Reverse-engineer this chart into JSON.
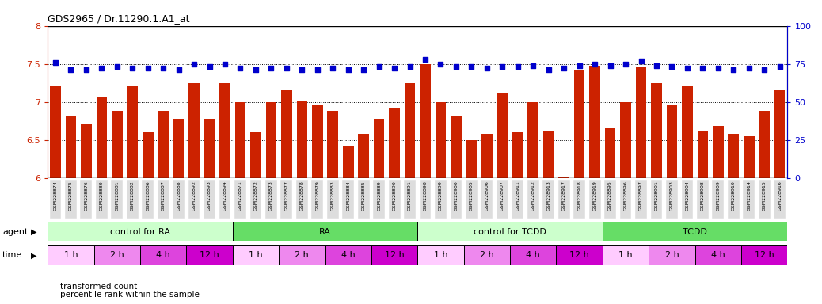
{
  "title": "GDS2965 / Dr.11290.1.A1_at",
  "bar_color": "#cc2200",
  "dot_color": "#0000cc",
  "samples": [
    "GSM228874",
    "GSM228875",
    "GSM228876",
    "GSM228880",
    "GSM228881",
    "GSM228882",
    "GSM228886",
    "GSM228887",
    "GSM228888",
    "GSM228892",
    "GSM228893",
    "GSM228894",
    "GSM228871",
    "GSM228872",
    "GSM228873",
    "GSM228877",
    "GSM228878",
    "GSM228879",
    "GSM228883",
    "GSM228884",
    "GSM228885",
    "GSM228889",
    "GSM228890",
    "GSM228891",
    "GSM228898",
    "GSM228899",
    "GSM228900",
    "GSM228905",
    "GSM228906",
    "GSM228907",
    "GSM228911",
    "GSM228912",
    "GSM228913",
    "GSM228917",
    "GSM228918",
    "GSM228919",
    "GSM228895",
    "GSM228896",
    "GSM228897",
    "GSM228901",
    "GSM228903",
    "GSM228904",
    "GSM228908",
    "GSM228909",
    "GSM228910",
    "GSM228914",
    "GSM228915",
    "GSM228916"
  ],
  "bar_values": [
    7.2,
    6.82,
    6.72,
    7.07,
    6.88,
    7.2,
    6.6,
    6.88,
    6.78,
    7.25,
    6.78,
    7.25,
    7.0,
    6.6,
    7.0,
    7.15,
    7.02,
    6.97,
    6.88,
    6.42,
    6.58,
    6.78,
    6.92,
    7.25,
    7.5,
    7.0,
    6.82,
    6.5,
    6.58,
    7.12,
    6.6,
    7.0,
    6.62,
    6.02,
    7.42,
    7.48,
    6.65,
    7.0,
    7.45,
    7.25,
    6.95,
    7.22,
    6.62,
    6.68,
    6.58,
    6.55,
    6.88,
    7.15
  ],
  "dot_values": [
    76,
    71,
    71,
    72,
    73,
    72,
    72,
    72,
    71,
    75,
    73,
    75,
    72,
    71,
    72,
    72,
    71,
    71,
    72,
    71,
    71,
    73,
    72,
    73,
    78,
    75,
    73,
    73,
    72,
    73,
    73,
    74,
    71,
    72,
    74,
    75,
    74,
    75,
    77,
    74,
    73,
    72,
    72,
    72,
    71,
    72,
    71,
    73
  ],
  "ylim_left": [
    6.0,
    8.0
  ],
  "ylim_right": [
    0,
    100
  ],
  "yticks_left": [
    6.0,
    6.5,
    7.0,
    7.5,
    8.0
  ],
  "yticks_right": [
    0,
    25,
    50,
    75,
    100
  ],
  "agent_groups": [
    {
      "label": "control for RA",
      "start": 0,
      "end": 12,
      "color": "#ccffcc"
    },
    {
      "label": "RA",
      "start": 12,
      "end": 24,
      "color": "#66dd66"
    },
    {
      "label": "control for TCDD",
      "start": 24,
      "end": 36,
      "color": "#ccffcc"
    },
    {
      "label": "TCDD",
      "start": 36,
      "end": 48,
      "color": "#66dd66"
    }
  ],
  "time_groups": [
    {
      "label": "1 h",
      "start": 0,
      "end": 3,
      "color": "#ffccff"
    },
    {
      "label": "2 h",
      "start": 3,
      "end": 6,
      "color": "#ee88ee"
    },
    {
      "label": "4 h",
      "start": 6,
      "end": 9,
      "color": "#dd44dd"
    },
    {
      "label": "12 h",
      "start": 9,
      "end": 12,
      "color": "#cc00cc"
    },
    {
      "label": "1 h",
      "start": 12,
      "end": 15,
      "color": "#ffccff"
    },
    {
      "label": "2 h",
      "start": 15,
      "end": 18,
      "color": "#ee88ee"
    },
    {
      "label": "4 h",
      "start": 18,
      "end": 21,
      "color": "#dd44dd"
    },
    {
      "label": "12 h",
      "start": 21,
      "end": 24,
      "color": "#cc00cc"
    },
    {
      "label": "1 h",
      "start": 24,
      "end": 27,
      "color": "#ffccff"
    },
    {
      "label": "2 h",
      "start": 27,
      "end": 30,
      "color": "#ee88ee"
    },
    {
      "label": "4 h",
      "start": 30,
      "end": 33,
      "color": "#dd44dd"
    },
    {
      "label": "12 h",
      "start": 33,
      "end": 36,
      "color": "#cc00cc"
    },
    {
      "label": "1 h",
      "start": 36,
      "end": 39,
      "color": "#ffccff"
    },
    {
      "label": "2 h",
      "start": 39,
      "end": 42,
      "color": "#ee88ee"
    },
    {
      "label": "4 h",
      "start": 42,
      "end": 45,
      "color": "#dd44dd"
    },
    {
      "label": "12 h",
      "start": 45,
      "end": 48,
      "color": "#cc00cc"
    }
  ],
  "legend_items": [
    {
      "label": "transformed count",
      "color": "#cc2200"
    },
    {
      "label": "percentile rank within the sample",
      "color": "#0000cc"
    }
  ],
  "gridline_color": "#000000",
  "bg_color": "#ffffff",
  "left_axis_color": "#cc2200",
  "right_axis_color": "#0000cc",
  "tick_label_bg": "#dddddd"
}
